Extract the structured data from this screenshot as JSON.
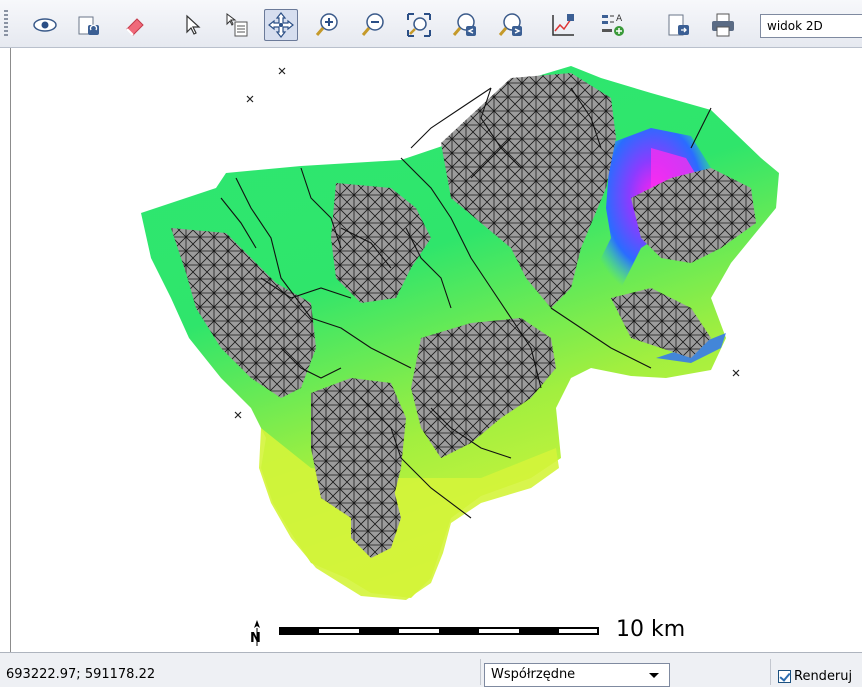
{
  "toolbar": {
    "buttons": [
      {
        "name": "eye-icon",
        "icon": "eye"
      },
      {
        "name": "layer-refresh-icon",
        "icon": "layer-refresh"
      },
      {
        "name": "eraser-icon",
        "icon": "eraser"
      },
      {
        "name": "select-arrow-icon",
        "icon": "arrow"
      },
      {
        "name": "identify-icon",
        "icon": "identify"
      },
      {
        "name": "pan-icon",
        "icon": "pan",
        "active": true
      },
      {
        "name": "zoom-in-icon",
        "icon": "zoom-in"
      },
      {
        "name": "zoom-out-icon",
        "icon": "zoom-out"
      },
      {
        "name": "zoom-extent-icon",
        "icon": "zoom-extent"
      },
      {
        "name": "zoom-previous-icon",
        "icon": "zoom-previous"
      },
      {
        "name": "zoom-next-icon",
        "icon": "zoom-next"
      },
      {
        "name": "chart-icon",
        "icon": "chart"
      },
      {
        "name": "legend-icon",
        "icon": "legend"
      },
      {
        "name": "export-icon",
        "icon": "export"
      },
      {
        "name": "print-icon",
        "icon": "print"
      }
    ],
    "view_mode": "widok 2D"
  },
  "map": {
    "scale_label": "10  km",
    "north_label": "N"
  },
  "status": {
    "coordinates": "693222.97; 591178.22",
    "coord_mode": "Współrzędne",
    "render_label": "Renderuj",
    "render_checked": true
  },
  "colors": {
    "accent_active": "#d6deef",
    "map_green": "#33e36a",
    "map_yellow": "#ccf23a",
    "map_blue": "#2b5cff",
    "map_magenta": "#ff22ee",
    "urban_gray": "#9a9a9a"
  }
}
